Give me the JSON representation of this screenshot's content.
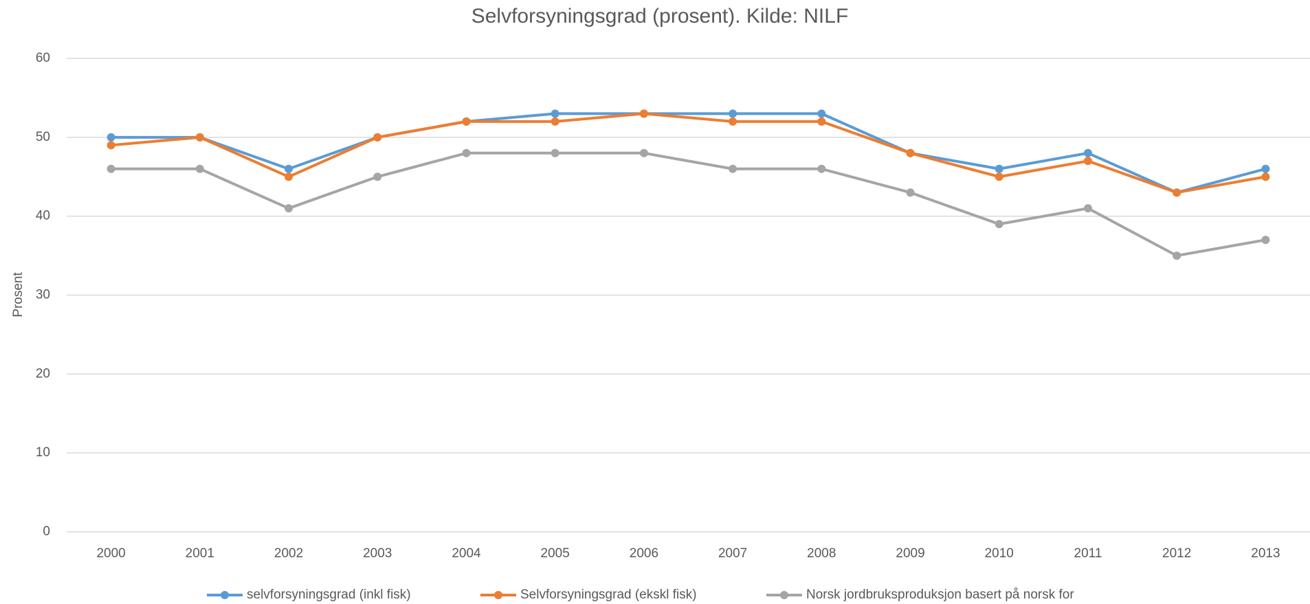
{
  "chart_data": {
    "type": "line",
    "title": "Selvforsyningsgrad (prosent). Kilde: NILF",
    "y_label": "Prosent",
    "categories": [
      "2000",
      "2001",
      "2002",
      "2003",
      "2004",
      "2005",
      "2006",
      "2007",
      "2008",
      "2009",
      "2010",
      "2011",
      "2012",
      "2013"
    ],
    "series": [
      {
        "name": "selvforsyningsgrad (inkl fisk)",
        "color": "#5b9bd5",
        "values": [
          50,
          50,
          46,
          50,
          52,
          53,
          53,
          53,
          53,
          48,
          46,
          48,
          43,
          46
        ]
      },
      {
        "name": "Selvforsyningsgrad (ekskl fisk)",
        "color": "#ed7d31",
        "values": [
          49,
          50,
          45,
          50,
          52,
          52,
          53,
          52,
          52,
          48,
          45,
          47,
          43,
          45
        ]
      },
      {
        "name": "Norsk jordbruksproduksjon basert på norsk for",
        "color": "#a5a5a5",
        "values": [
          46,
          46,
          41,
          45,
          48,
          48,
          48,
          46,
          46,
          43,
          39,
          41,
          35,
          37
        ]
      }
    ],
    "ylim": [
      0,
      60
    ],
    "yticks": [
      0,
      10,
      20,
      30,
      40,
      50,
      60
    ],
    "grid": true,
    "legend": "bottom"
  }
}
